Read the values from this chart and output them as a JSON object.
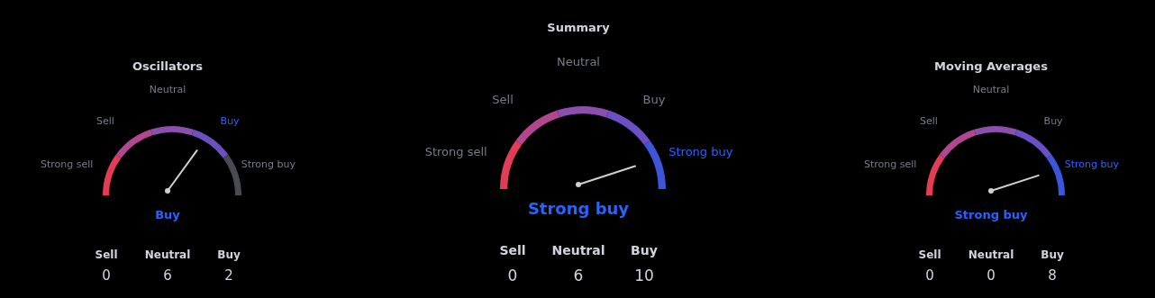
{
  "chart_data": [
    {
      "type": "donut",
      "title": "Oscillators",
      "categories": [
        "Strong sell",
        "Sell",
        "Neutral",
        "Buy",
        "Strong buy"
      ],
      "values": [
        20,
        20,
        20,
        20,
        20
      ],
      "colors": [
        "#e33d55",
        "#b2468f",
        "#8c4fae",
        "#6c50c2",
        "#4a4a52"
      ],
      "needle": "Buy",
      "annotations": [
        "Buy",
        "Sell",
        "Neutral",
        "Buy",
        "0",
        "6",
        "2"
      ]
    },
    {
      "type": "donut",
      "title": "Summary",
      "categories": [
        "Strong sell",
        "Sell",
        "Neutral",
        "Buy",
        "Strong buy"
      ],
      "values": [
        20,
        20,
        20,
        20,
        20
      ],
      "colors": [
        "#e33d55",
        "#b2468f",
        "#8c4fae",
        "#6a50c4",
        "#3d55d8"
      ],
      "needle": "Strong buy",
      "annotations": [
        "Strong buy",
        "Sell",
        "Neutral",
        "Buy",
        "0",
        "6",
        "10"
      ]
    },
    {
      "type": "donut",
      "title": "Moving Averages",
      "categories": [
        "Strong sell",
        "Sell",
        "Neutral",
        "Buy",
        "Strong buy"
      ],
      "values": [
        20,
        20,
        20,
        20,
        20
      ],
      "colors": [
        "#e33d55",
        "#b2468f",
        "#8c4fae",
        "#6a50c4",
        "#3d55d8"
      ],
      "needle": "Strong buy",
      "annotations": [
        "Strong buy",
        "Sell",
        "Neutral",
        "Buy",
        "0",
        "0",
        "8"
      ]
    }
  ]
}
